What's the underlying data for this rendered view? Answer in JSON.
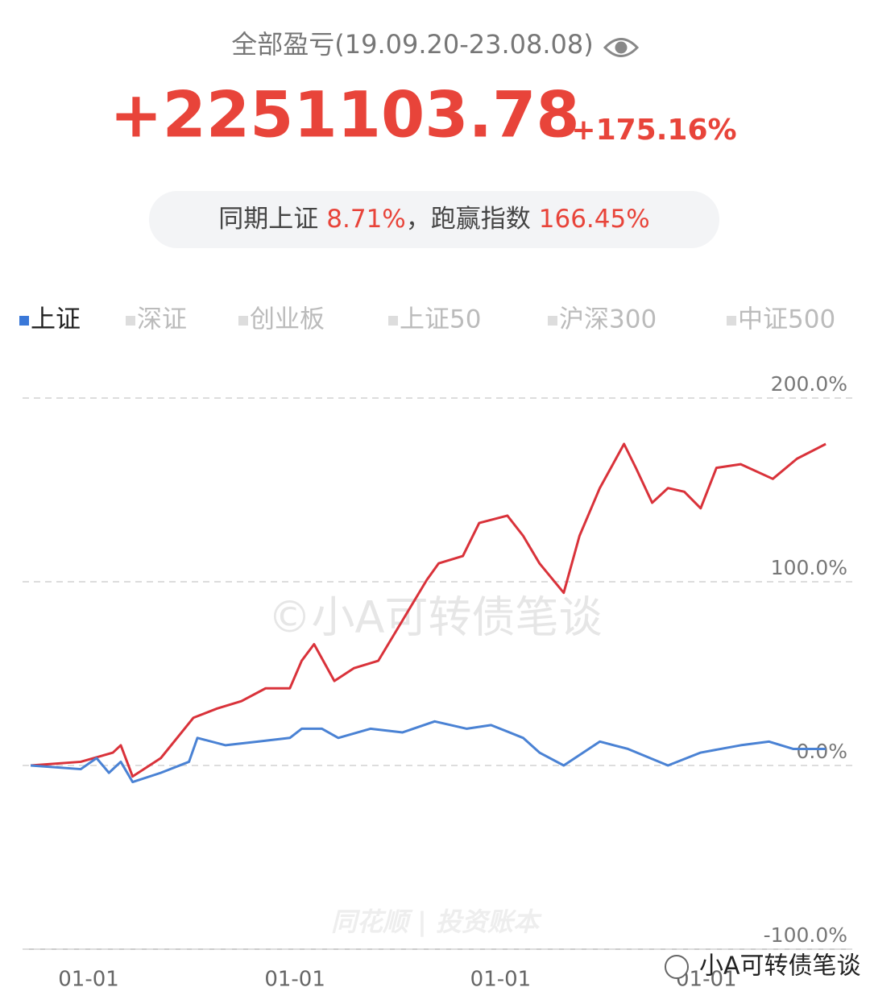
{
  "header": {
    "title": "全部盈亏(19.09.20-23.08.08)",
    "total": "+2251103.78",
    "total_pct": "+175.16%",
    "compare": {
      "label1": "同期上证",
      "value1": "8.71%",
      "label2": "，跑赢指数",
      "value2": "166.45%"
    }
  },
  "tabs": [
    "上证",
    "深证",
    "创业板",
    "上证50",
    "沪深300",
    "中证500"
  ],
  "watermarks": {
    "center": "©小A可转债笔谈",
    "app": "同花顺 | 投资账本",
    "footer": "小A可转债笔谈"
  },
  "chart_data": {
    "type": "line",
    "xlim": [
      0,
      1418
    ],
    "ylim": [
      -100,
      200
    ],
    "yticks": [
      {
        "value": 200,
        "label": "200.0%"
      },
      {
        "value": 100,
        "label": "100.0%"
      },
      {
        "value": 0,
        "label": "0.0%"
      },
      {
        "value": -100,
        "label": "-100.0%"
      }
    ],
    "xticks": [
      {
        "value": 103,
        "label": "01-01"
      },
      {
        "value": 469,
        "label": "01-01"
      },
      {
        "value": 834,
        "label": "01-01"
      },
      {
        "value": 1199,
        "label": "01-01"
      }
    ],
    "grid": true,
    "series": [
      {
        "color": "#d9323a",
        "x": [
          0,
          89,
          146,
          160,
          181,
          231,
          289,
          331,
          374,
          417,
          460,
          481,
          503,
          539,
          574,
          617,
          660,
          703,
          724,
          767,
          796,
          846,
          874,
          903,
          946,
          974,
          1010,
          1053,
          1074,
          1103,
          1131,
          1160,
          1189,
          1217,
          1260,
          1317,
          1360,
          1411
        ],
        "values": [
          0,
          2,
          7,
          11,
          -6,
          4,
          26,
          31,
          35,
          42,
          42,
          57,
          66,
          46,
          53,
          57,
          79,
          101,
          110,
          114,
          132,
          136,
          125,
          110,
          94,
          125,
          151,
          175,
          162,
          143,
          151,
          149,
          140,
          162,
          164,
          156,
          167,
          175
        ]
      },
      {
        "name": "上证",
        "color": "#4a82d4",
        "x": [
          0,
          89,
          117,
          139,
          160,
          181,
          231,
          281,
          296,
          346,
          403,
          460,
          481,
          517,
          546,
          603,
          660,
          717,
          774,
          817,
          874,
          903,
          946,
          1010,
          1060,
          1131,
          1189,
          1260,
          1310,
          1353,
          1411
        ],
        "values": [
          0,
          -2,
          4,
          -4,
          2,
          -9,
          -4,
          2,
          15,
          11,
          13,
          15,
          20,
          20,
          15,
          20,
          18,
          24,
          20,
          22,
          15,
          7,
          0,
          13,
          9,
          0,
          7,
          11,
          13,
          9,
          9
        ]
      }
    ]
  }
}
